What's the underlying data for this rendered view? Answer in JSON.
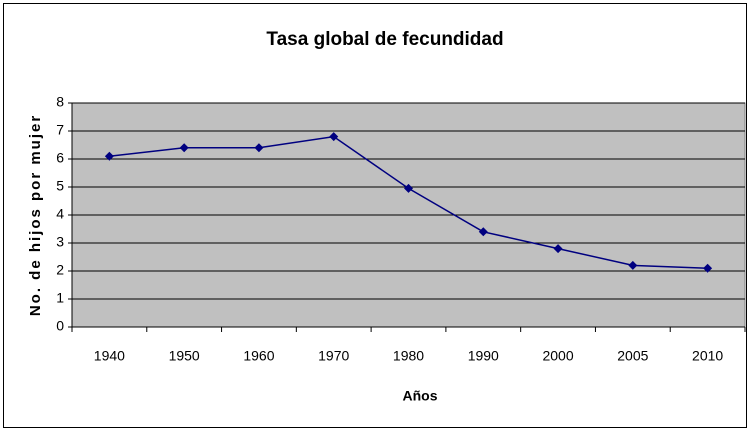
{
  "chart_data": {
    "type": "line",
    "title": "Tasa global de fecundidad",
    "x_label": "Años",
    "y_label": "No. de hijos por mujer",
    "categories": [
      "1940",
      "1950",
      "1960",
      "1970",
      "1980",
      "1990",
      "2000",
      "2005",
      "2010"
    ],
    "series": [
      {
        "name": "Tasa global de fecundidad",
        "color": "#000080",
        "values": [
          6.1,
          6.4,
          6.4,
          6.8,
          4.95,
          3.4,
          2.8,
          2.2,
          2.1
        ]
      }
    ],
    "ylim": [
      0,
      8
    ],
    "yticks": [
      0,
      1,
      2,
      3,
      4,
      5,
      6,
      7,
      8
    ],
    "grid": true,
    "plot_background": "#c0c0c0"
  }
}
